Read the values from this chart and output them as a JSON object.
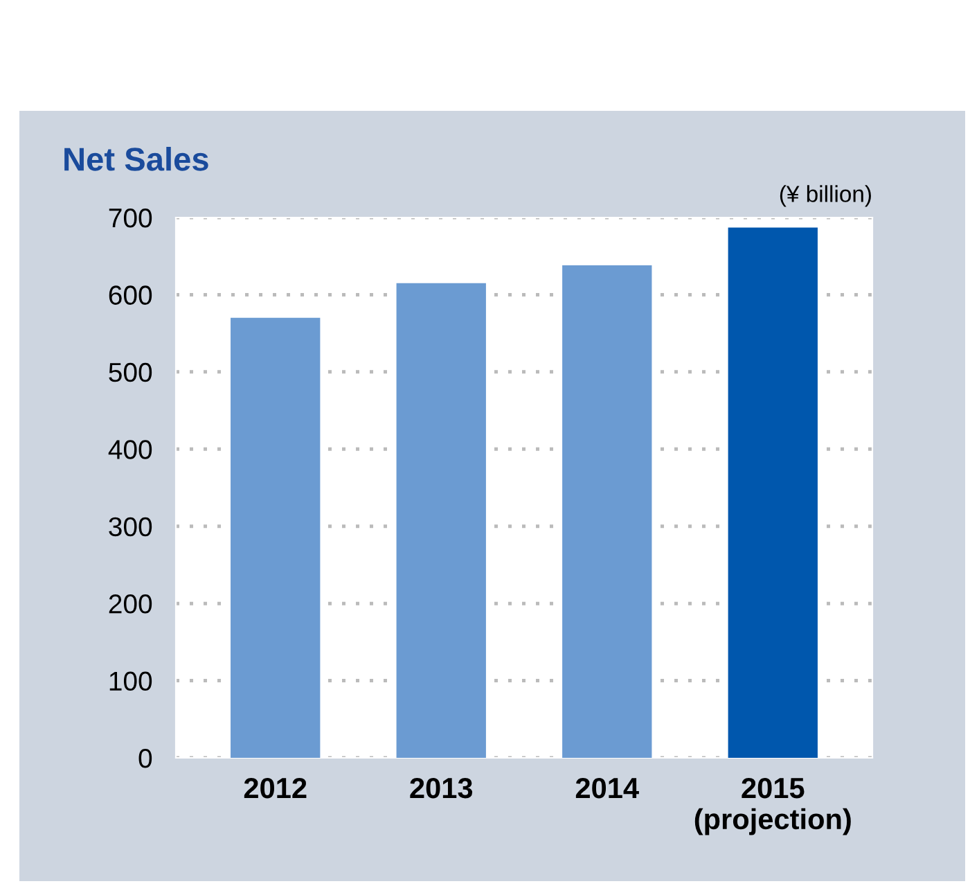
{
  "chart_data": {
    "type": "bar",
    "title": "Net Sales",
    "categories": [
      "2012",
      "2013",
      "2014",
      "2015\n(projection)"
    ],
    "values": [
      570,
      615,
      638,
      687
    ],
    "colors": [
      "#6b9bd2",
      "#6b9bd2",
      "#6b9bd2",
      "#0057ad"
    ],
    "ylim": [
      0,
      700
    ],
    "yticks": [
      0,
      100,
      200,
      300,
      400,
      500,
      600,
      700
    ],
    "grid": "y",
    "annotations": [
      "(¥ billion)"
    ]
  }
}
